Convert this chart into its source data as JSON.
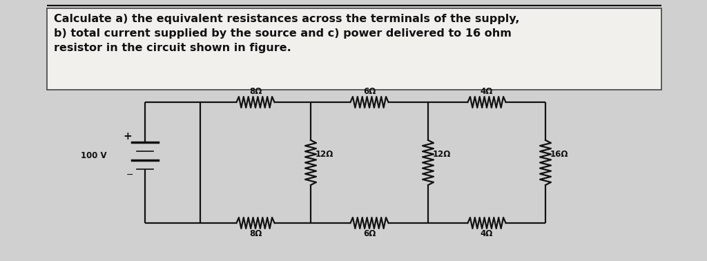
{
  "title_text": "Calculate a) the equivalent resistances across the terminals of the supply,\nb) total current supplied by the source and c) power delivered to 16 ohm\nresistor in the circuit shown in figure.",
  "bg_color": "#d0d0d0",
  "panel_bg": "#e8e8e8",
  "text_box_bg": "#f5f5f0",
  "text_color": "#111111",
  "font_size_title": 11.5,
  "top_resistors": [
    "8Ω",
    "6Ω",
    "4Ω"
  ],
  "bot_resistors": [
    "8Ω",
    "6Ω",
    "4Ω"
  ],
  "vert_resistors": [
    "12Ω",
    "12Ω",
    "16Ω"
  ],
  "voltage": "100 V",
  "lw": 1.6
}
